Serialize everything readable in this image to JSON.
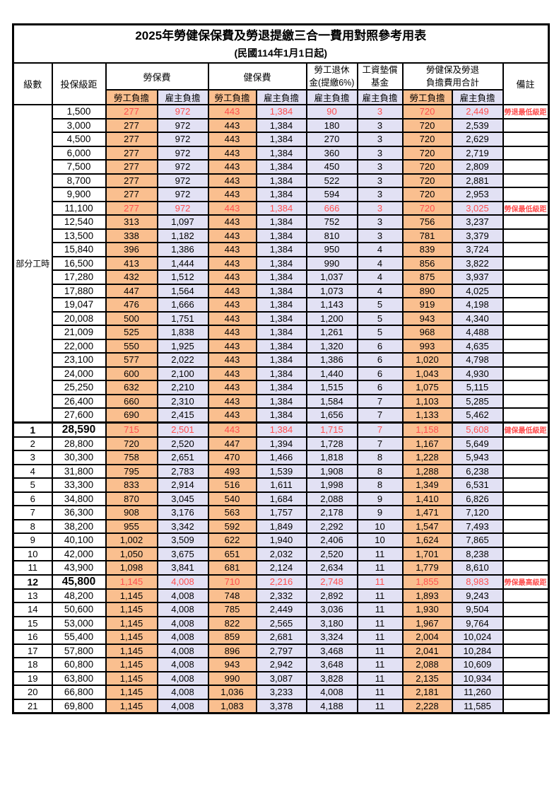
{
  "title": "2025年勞健保保費及勞退提繳三合一費用對照參考用表",
  "subtitle": "(民國114年1月1日起)",
  "columns": {
    "level": "級數",
    "bracket": "投保級距",
    "labor_insurance": "勞保費",
    "health_insurance": "健保費",
    "pension": [
      "勞工退休",
      "金(提繳6%)"
    ],
    "wage_fund": [
      "工資墊償",
      "基金"
    ],
    "total": [
      "勞健保及勞退",
      "負擔費用合計"
    ],
    "remark": "備註",
    "worker": "勞工負擔",
    "employer": "雇主負擔"
  },
  "group_label": "部分工時",
  "part_time_rows": 23,
  "colors": {
    "worker_bg": "#FABF8F",
    "employer_bg": "#E2E1F4",
    "highlight_red": "#FF4F4F",
    "border": "#000000"
  },
  "rows": [
    {
      "l": "",
      "b": "1,500",
      "v": [
        "277",
        "972",
        "443",
        "1,384",
        "90",
        "3",
        "720",
        "2,449"
      ],
      "r": "勞退最低級距",
      "red": true,
      "big": false
    },
    {
      "l": "",
      "b": "3,000",
      "v": [
        "277",
        "972",
        "443",
        "1,384",
        "180",
        "3",
        "720",
        "2,539"
      ],
      "r": "",
      "red": false,
      "big": false
    },
    {
      "l": "",
      "b": "4,500",
      "v": [
        "277",
        "972",
        "443",
        "1,384",
        "270",
        "3",
        "720",
        "2,629"
      ],
      "r": "",
      "red": false,
      "big": false
    },
    {
      "l": "",
      "b": "6,000",
      "v": [
        "277",
        "972",
        "443",
        "1,384",
        "360",
        "3",
        "720",
        "2,719"
      ],
      "r": "",
      "red": false,
      "big": false
    },
    {
      "l": "",
      "b": "7,500",
      "v": [
        "277",
        "972",
        "443",
        "1,384",
        "450",
        "3",
        "720",
        "2,809"
      ],
      "r": "",
      "red": false,
      "big": false
    },
    {
      "l": "",
      "b": "8,700",
      "v": [
        "277",
        "972",
        "443",
        "1,384",
        "522",
        "3",
        "720",
        "2,881"
      ],
      "r": "",
      "red": false,
      "big": false
    },
    {
      "l": "",
      "b": "9,900",
      "v": [
        "277",
        "972",
        "443",
        "1,384",
        "594",
        "3",
        "720",
        "2,953"
      ],
      "r": "",
      "red": false,
      "big": false
    },
    {
      "l": "",
      "b": "11,100",
      "v": [
        "277",
        "972",
        "443",
        "1,384",
        "666",
        "3",
        "720",
        "3,025"
      ],
      "r": "勞保最低級距",
      "red": true,
      "big": false
    },
    {
      "l": "",
      "b": "12,540",
      "v": [
        "313",
        "1,097",
        "443",
        "1,384",
        "752",
        "3",
        "756",
        "3,237"
      ],
      "r": "",
      "red": false,
      "big": false
    },
    {
      "l": "",
      "b": "13,500",
      "v": [
        "338",
        "1,182",
        "443",
        "1,384",
        "810",
        "3",
        "781",
        "3,379"
      ],
      "r": "",
      "red": false,
      "big": false
    },
    {
      "l": "",
      "b": "15,840",
      "v": [
        "396",
        "1,386",
        "443",
        "1,384",
        "950",
        "4",
        "839",
        "3,724"
      ],
      "r": "",
      "red": false,
      "big": false
    },
    {
      "l": "",
      "b": "16,500",
      "v": [
        "413",
        "1,444",
        "443",
        "1,384",
        "990",
        "4",
        "856",
        "3,822"
      ],
      "r": "",
      "red": false,
      "big": false
    },
    {
      "l": "",
      "b": "17,280",
      "v": [
        "432",
        "1,512",
        "443",
        "1,384",
        "1,037",
        "4",
        "875",
        "3,937"
      ],
      "r": "",
      "red": false,
      "big": false
    },
    {
      "l": "",
      "b": "17,880",
      "v": [
        "447",
        "1,564",
        "443",
        "1,384",
        "1,073",
        "4",
        "890",
        "4,025"
      ],
      "r": "",
      "red": false,
      "big": false
    },
    {
      "l": "",
      "b": "19,047",
      "v": [
        "476",
        "1,666",
        "443",
        "1,384",
        "1,143",
        "5",
        "919",
        "4,198"
      ],
      "r": "",
      "red": false,
      "big": false
    },
    {
      "l": "",
      "b": "20,008",
      "v": [
        "500",
        "1,751",
        "443",
        "1,384",
        "1,200",
        "5",
        "943",
        "4,340"
      ],
      "r": "",
      "red": false,
      "big": false
    },
    {
      "l": "",
      "b": "21,009",
      "v": [
        "525",
        "1,838",
        "443",
        "1,384",
        "1,261",
        "5",
        "968",
        "4,488"
      ],
      "r": "",
      "red": false,
      "big": false
    },
    {
      "l": "",
      "b": "22,000",
      "v": [
        "550",
        "1,925",
        "443",
        "1,384",
        "1,320",
        "6",
        "993",
        "4,635"
      ],
      "r": "",
      "red": false,
      "big": false
    },
    {
      "l": "",
      "b": "23,100",
      "v": [
        "577",
        "2,022",
        "443",
        "1,384",
        "1,386",
        "6",
        "1,020",
        "4,798"
      ],
      "r": "",
      "red": false,
      "big": false
    },
    {
      "l": "",
      "b": "24,000",
      "v": [
        "600",
        "2,100",
        "443",
        "1,384",
        "1,440",
        "6",
        "1,043",
        "4,930"
      ],
      "r": "",
      "red": false,
      "big": false
    },
    {
      "l": "",
      "b": "25,250",
      "v": [
        "632",
        "2,210",
        "443",
        "1,384",
        "1,515",
        "6",
        "1,075",
        "5,115"
      ],
      "r": "",
      "red": false,
      "big": false
    },
    {
      "l": "",
      "b": "26,400",
      "v": [
        "660",
        "2,310",
        "443",
        "1,384",
        "1,584",
        "7",
        "1,103",
        "5,285"
      ],
      "r": "",
      "red": false,
      "big": false
    },
    {
      "l": "",
      "b": "27,600",
      "v": [
        "690",
        "2,415",
        "443",
        "1,384",
        "1,656",
        "7",
        "1,133",
        "5,462"
      ],
      "r": "",
      "red": false,
      "big": false
    },
    {
      "l": "1",
      "b": "28,590",
      "v": [
        "715",
        "2,501",
        "443",
        "1,384",
        "1,715",
        "7",
        "1,158",
        "5,608"
      ],
      "r": "健保最低級距",
      "red": true,
      "big": true
    },
    {
      "l": "2",
      "b": "28,800",
      "v": [
        "720",
        "2,520",
        "447",
        "1,394",
        "1,728",
        "7",
        "1,167",
        "5,649"
      ],
      "r": "",
      "red": false,
      "big": false
    },
    {
      "l": "3",
      "b": "30,300",
      "v": [
        "758",
        "2,651",
        "470",
        "1,466",
        "1,818",
        "8",
        "1,228",
        "5,943"
      ],
      "r": "",
      "red": false,
      "big": false
    },
    {
      "l": "4",
      "b": "31,800",
      "v": [
        "795",
        "2,783",
        "493",
        "1,539",
        "1,908",
        "8",
        "1,288",
        "6,238"
      ],
      "r": "",
      "red": false,
      "big": false
    },
    {
      "l": "5",
      "b": "33,300",
      "v": [
        "833",
        "2,914",
        "516",
        "1,611",
        "1,998",
        "8",
        "1,349",
        "6,531"
      ],
      "r": "",
      "red": false,
      "big": false
    },
    {
      "l": "6",
      "b": "34,800",
      "v": [
        "870",
        "3,045",
        "540",
        "1,684",
        "2,088",
        "9",
        "1,410",
        "6,826"
      ],
      "r": "",
      "red": false,
      "big": false
    },
    {
      "l": "7",
      "b": "36,300",
      "v": [
        "908",
        "3,176",
        "563",
        "1,757",
        "2,178",
        "9",
        "1,471",
        "7,120"
      ],
      "r": "",
      "red": false,
      "big": false
    },
    {
      "l": "8",
      "b": "38,200",
      "v": [
        "955",
        "3,342",
        "592",
        "1,849",
        "2,292",
        "10",
        "1,547",
        "7,493"
      ],
      "r": "",
      "red": false,
      "big": false
    },
    {
      "l": "9",
      "b": "40,100",
      "v": [
        "1,002",
        "3,509",
        "622",
        "1,940",
        "2,406",
        "10",
        "1,624",
        "7,865"
      ],
      "r": "",
      "red": false,
      "big": false
    },
    {
      "l": "10",
      "b": "42,000",
      "v": [
        "1,050",
        "3,675",
        "651",
        "2,032",
        "2,520",
        "11",
        "1,701",
        "8,238"
      ],
      "r": "",
      "red": false,
      "big": false
    },
    {
      "l": "11",
      "b": "43,900",
      "v": [
        "1,098",
        "3,841",
        "681",
        "2,124",
        "2,634",
        "11",
        "1,779",
        "8,610"
      ],
      "r": "",
      "red": false,
      "big": false
    },
    {
      "l": "12",
      "b": "45,800",
      "v": [
        "1,145",
        "4,008",
        "710",
        "2,216",
        "2,748",
        "11",
        "1,855",
        "8,983"
      ],
      "r": "勞保最高級距",
      "red": true,
      "big": true
    },
    {
      "l": "13",
      "b": "48,200",
      "v": [
        "1,145",
        "4,008",
        "748",
        "2,332",
        "2,892",
        "11",
        "1,893",
        "9,243"
      ],
      "r": "",
      "red": false,
      "big": false
    },
    {
      "l": "14",
      "b": "50,600",
      "v": [
        "1,145",
        "4,008",
        "785",
        "2,449",
        "3,036",
        "11",
        "1,930",
        "9,504"
      ],
      "r": "",
      "red": false,
      "big": false
    },
    {
      "l": "15",
      "b": "53,000",
      "v": [
        "1,145",
        "4,008",
        "822",
        "2,565",
        "3,180",
        "11",
        "1,967",
        "9,764"
      ],
      "r": "",
      "red": false,
      "big": false
    },
    {
      "l": "16",
      "b": "55,400",
      "v": [
        "1,145",
        "4,008",
        "859",
        "2,681",
        "3,324",
        "11",
        "2,004",
        "10,024"
      ],
      "r": "",
      "red": false,
      "big": false
    },
    {
      "l": "17",
      "b": "57,800",
      "v": [
        "1,145",
        "4,008",
        "896",
        "2,797",
        "3,468",
        "11",
        "2,041",
        "10,284"
      ],
      "r": "",
      "red": false,
      "big": false
    },
    {
      "l": "18",
      "b": "60,800",
      "v": [
        "1,145",
        "4,008",
        "943",
        "2,942",
        "3,648",
        "11",
        "2,088",
        "10,609"
      ],
      "r": "",
      "red": false,
      "big": false
    },
    {
      "l": "19",
      "b": "63,800",
      "v": [
        "1,145",
        "4,008",
        "990",
        "3,087",
        "3,828",
        "11",
        "2,135",
        "10,934"
      ],
      "r": "",
      "red": false,
      "big": false
    },
    {
      "l": "20",
      "b": "66,800",
      "v": [
        "1,145",
        "4,008",
        "1,036",
        "3,233",
        "4,008",
        "11",
        "2,181",
        "11,260"
      ],
      "r": "",
      "red": false,
      "big": false
    },
    {
      "l": "21",
      "b": "69,800",
      "v": [
        "1,145",
        "4,008",
        "1,083",
        "3,378",
        "4,188",
        "11",
        "2,228",
        "11,585"
      ],
      "r": "",
      "red": false,
      "big": false
    }
  ]
}
